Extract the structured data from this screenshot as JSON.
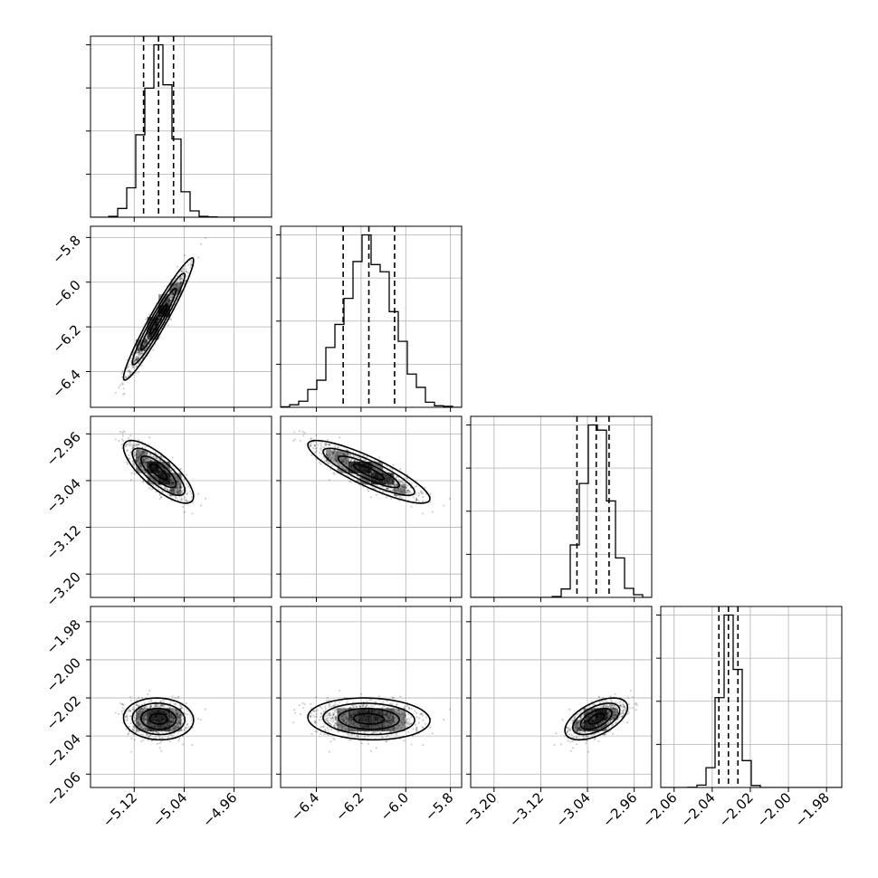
{
  "chart_data": {
    "type": "corner",
    "parameters": [
      {
        "index": 0,
        "center": -5.081,
        "sigma": 0.023,
        "q16": -5.105,
        "q50": -5.081,
        "q84": -5.057,
        "range": [
          -5.19,
          -4.9
        ],
        "ticks": [
          -5.12,
          -5.04,
          -4.96
        ],
        "tick_labels": [
          "−5.12",
          "−5.04",
          "−4.96"
        ]
      },
      {
        "index": 1,
        "center": -6.165,
        "sigma": 0.112,
        "q16": -6.28,
        "q50": -6.165,
        "q84": -6.05,
        "range": [
          -6.56,
          -5.75
        ],
        "ticks": [
          -6.4,
          -6.2,
          -6.0,
          -5.8
        ],
        "tick_labels": [
          "−6.4",
          "−6.2",
          "−6.0",
          "−5.8"
        ]
      },
      {
        "index": 2,
        "center": -3.025,
        "sigma": 0.022,
        "q16": -3.058,
        "q50": -3.025,
        "q84": -3.003,
        "range": [
          -3.24,
          -2.93
        ],
        "ticks": [
          -3.2,
          -3.12,
          -3.04,
          -2.96
        ],
        "tick_labels": [
          "−3.20",
          "−3.12",
          "−3.04",
          "−2.96"
        ]
      },
      {
        "index": 3,
        "center": -2.031,
        "sigma": 0.0045,
        "q16": -2.0365,
        "q50": -2.0315,
        "q84": -2.0265,
        "range": [
          -2.067,
          -1.972
        ],
        "ticks": [
          -2.06,
          -2.04,
          -2.02,
          -2.0,
          -1.98
        ],
        "tick_labels": [
          "−2.06",
          "−2.04",
          "−2.02",
          "−2.00",
          "−1.98"
        ]
      }
    ],
    "correlations": [
      [
        1.0,
        0.96,
        -0.78,
        -0.05
      ],
      [
        0.96,
        1.0,
        -0.86,
        -0.08
      ],
      [
        -0.78,
        -0.86,
        1.0,
        0.55
      ],
      [
        -0.05,
        -0.08,
        0.55,
        1.0
      ]
    ],
    "histogram_bins": 20,
    "grid": true,
    "quantiles": [
      0.16,
      0.5,
      0.84
    ],
    "colors": {
      "points": "#000000",
      "contour": "#000000",
      "grid": "#b0b0b0"
    }
  }
}
